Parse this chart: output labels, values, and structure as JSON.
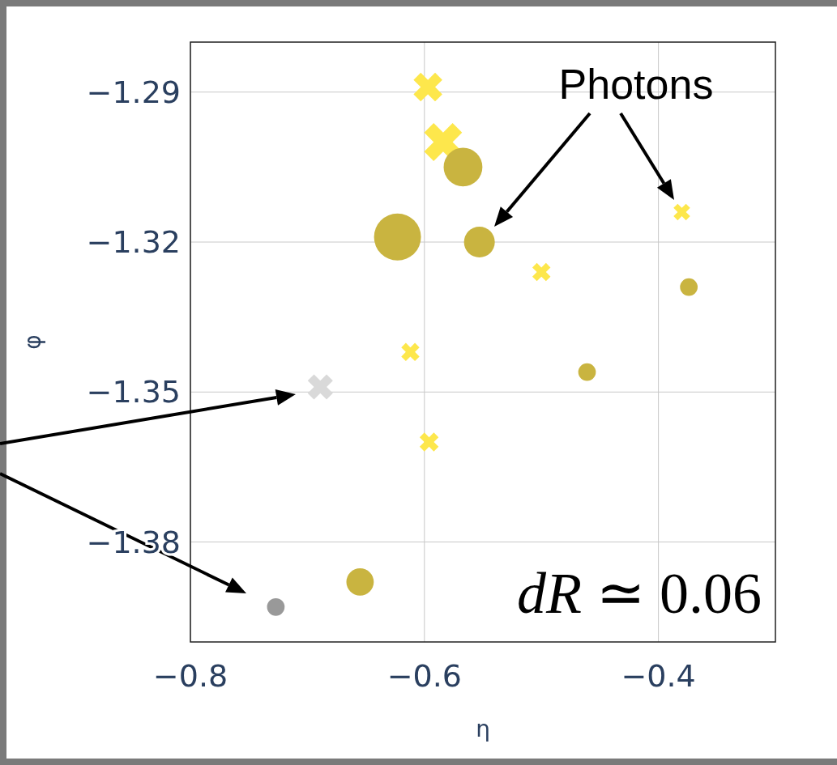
{
  "chart_data": {
    "type": "bubble",
    "xlabel": "η",
    "ylabel": "φ",
    "xlim": [
      -0.8,
      -0.3
    ],
    "xticks": [
      {
        "value": -0.8,
        "label": "−0.8"
      },
      {
        "value": -0.6,
        "label": "−0.6"
      },
      {
        "value": -0.4,
        "label": "−0.4"
      }
    ],
    "ylim": [
      -1.4,
      -1.28
    ],
    "yticks": [
      {
        "value": -1.29,
        "label": "−1.29"
      },
      {
        "value": -1.32,
        "label": "−1.32"
      },
      {
        "value": -1.35,
        "label": "−1.35"
      },
      {
        "value": -1.38,
        "label": "−1.38"
      }
    ],
    "grid": true,
    "series": [
      {
        "marker": "cross",
        "x": [
          -0.597,
          -0.584,
          -0.38,
          -0.5,
          -0.612,
          -0.596,
          -0.689
        ],
        "values": [
          -1.289,
          -1.3,
          -1.314,
          -1.326,
          -1.342,
          -1.36,
          -1.349
        ],
        "sizes": [
          0.3,
          0.52,
          0.1,
          0.12,
          0.12,
          0.13,
          0.23
        ],
        "colors": [
          "#fde74c",
          "#fde74c",
          "#fde74c",
          "#fde74c",
          "#fde74c",
          "#fde74c",
          "#d9d9d9"
        ]
      },
      {
        "marker": "circle",
        "x": [
          -0.567,
          -0.623,
          -0.553,
          -0.374,
          -0.461,
          -0.655,
          -0.727
        ],
        "values": [
          -1.305,
          -1.319,
          -1.32,
          -1.329,
          -1.346,
          -1.388,
          -1.393
        ],
        "sizes": [
          0.68,
          1,
          0.43,
          0.14,
          0.14,
          0.34,
          0.14
        ],
        "colors": [
          "#c9b440",
          "#c9b440",
          "#c9b440",
          "#c9b440",
          "#c9b440",
          "#c9b440",
          "#999999"
        ]
      }
    ],
    "annotations": [
      "Photons",
      "dR ≃ 0.06"
    ]
  }
}
